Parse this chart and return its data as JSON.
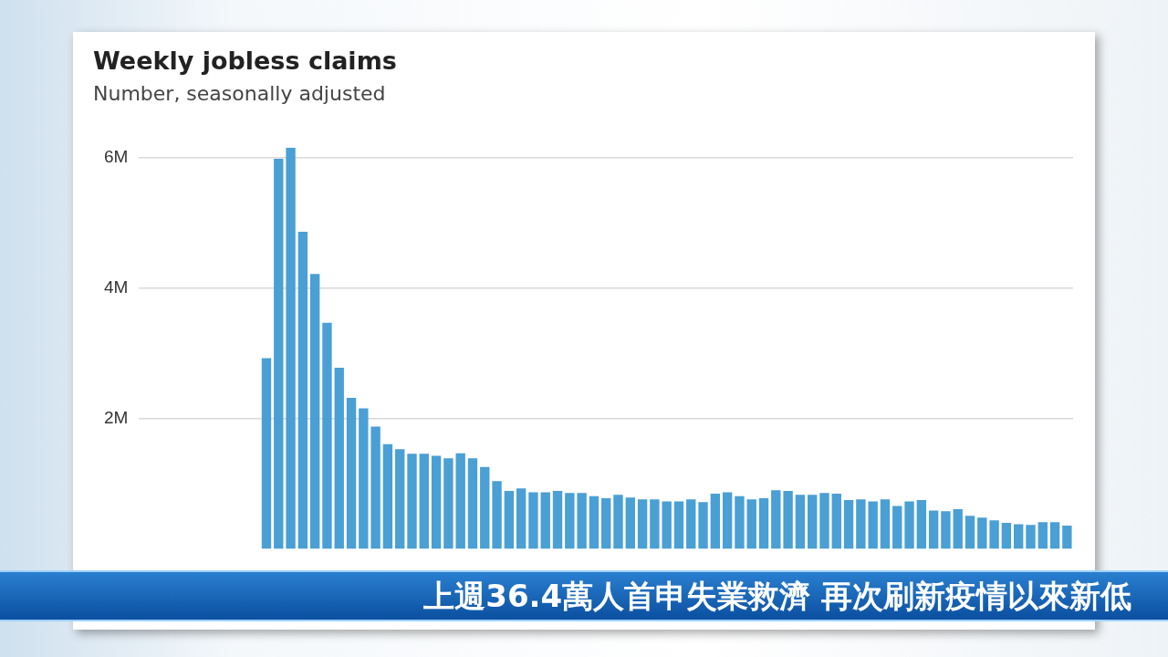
{
  "chart_data": {
    "type": "bar",
    "title": "Weekly jobless claims",
    "subtitle": "Number, seasonally adjusted",
    "categories": [
      null,
      null,
      null,
      null,
      null,
      null,
      null,
      null,
      null,
      null,
      null,
      null,
      null,
      null,
      null,
      null,
      null,
      null,
      null,
      null,
      null,
      null,
      null,
      null,
      null,
      null,
      null,
      null,
      null,
      null,
      null,
      null,
      null,
      null,
      null,
      null,
      null,
      null,
      null,
      null,
      null,
      null,
      null,
      null,
      null,
      null,
      null,
      null,
      null,
      null,
      null,
      null,
      null,
      null,
      null,
      null,
      null,
      null,
      null,
      null,
      null,
      null,
      null,
      null,
      null,
      null,
      null,
      null,
      null,
      null,
      null,
      null,
      null,
      null,
      null,
      null,
      null
    ],
    "values": [
      null,
      null,
      null,
      null,
      null,
      null,
      null,
      null,
      null,
      null,
      2.93,
      5.99,
      6.16,
      4.87,
      4.22,
      3.47,
      2.78,
      2.32,
      2.16,
      1.88,
      1.61,
      1.53,
      1.46,
      1.46,
      1.43,
      1.39,
      1.47,
      1.39,
      1.26,
      1.04,
      0.89,
      0.93,
      0.87,
      0.87,
      0.89,
      0.86,
      0.86,
      0.81,
      0.78,
      0.83,
      0.79,
      0.76,
      0.76,
      0.73,
      0.73,
      0.76,
      0.72,
      0.85,
      0.87,
      0.81,
      0.76,
      0.78,
      0.9,
      0.89,
      0.83,
      0.83,
      0.86,
      0.85,
      0.75,
      0.76,
      0.73,
      0.76,
      0.66,
      0.73,
      0.75,
      0.59,
      0.58,
      0.61,
      0.51,
      0.48,
      0.44,
      0.4,
      0.38,
      0.37,
      0.41,
      0.41,
      0.36
    ],
    "color": "#4a9fd4",
    "ylim": [
      0,
      6.16
    ],
    "yticks": [
      {
        "value": 2,
        "label": "2M"
      },
      {
        "value": 4,
        "label": "4M"
      },
      {
        "value": 6,
        "label": "6M"
      }
    ],
    "grid": "y",
    "tick_labels": "y",
    "annotations": [
      "上週36.4萬人首申失業救濟 再次刷新疫情以來新低"
    ]
  }
}
